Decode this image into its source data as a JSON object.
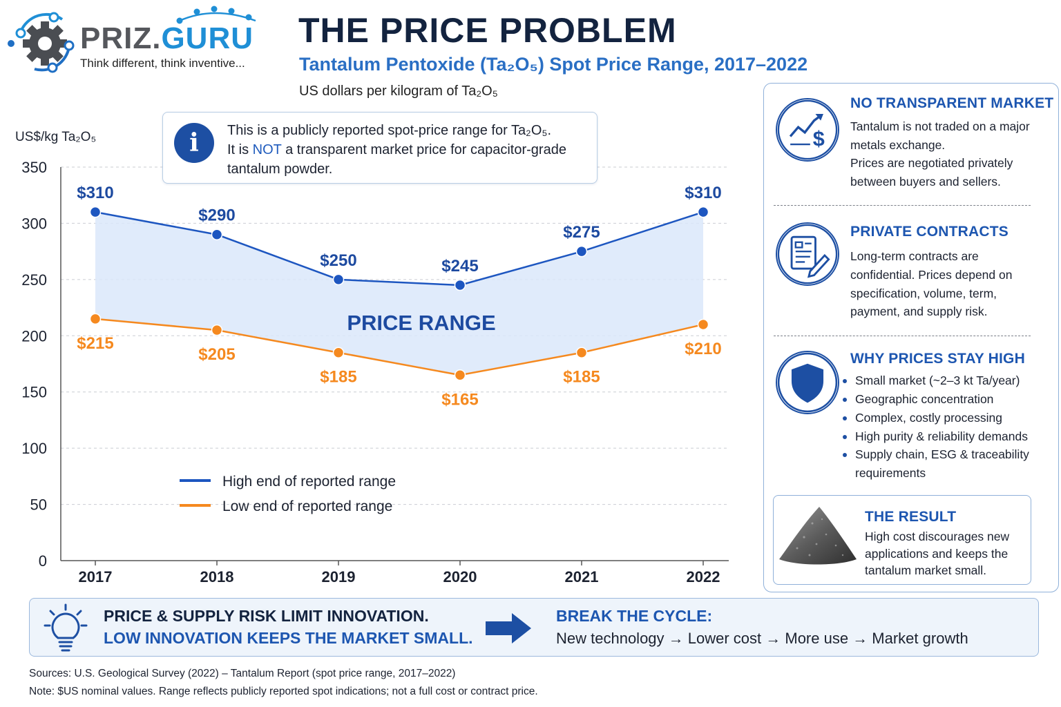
{
  "logo": {
    "name_part1": "PRIZ.",
    "name_part2": "GURU",
    "tagline": "Think different, think inventive..."
  },
  "header": {
    "title": "THE PRICE PROBLEM",
    "subtitle": "Tantalum Pentoxide (Ta₂O₅) Spot Price Range, 2017–2022",
    "unit_line": "US dollars per kilogram of Ta₂O₅"
  },
  "info_box": {
    "line1": "This is a publicly reported spot-price range for Ta₂O₅.",
    "line2_pre": "It is ",
    "line2_emph": "NOT",
    "line2_post": " a transparent market price for capacitor-grade",
    "line3": "tantalum powder."
  },
  "chart_data": {
    "type": "line",
    "ylabel": "US$/kg Ta₂O₅",
    "categories": [
      "2017",
      "2018",
      "2019",
      "2020",
      "2021",
      "2022"
    ],
    "ylim": [
      0,
      350
    ],
    "yticks": [
      "0",
      "50",
      "100",
      "150",
      "200",
      "250",
      "300",
      "350"
    ],
    "grid": true,
    "band_label": "PRICE RANGE",
    "series": [
      {
        "name": "High end of reported range",
        "values": [
          310,
          290,
          250,
          245,
          275,
          310
        ],
        "labels": [
          "$310",
          "$290",
          "$250",
          "$245",
          "$275",
          "$310"
        ],
        "color": "#1d56c0"
      },
      {
        "name": "Low end of reported range",
        "values": [
          215,
          205,
          185,
          165,
          185,
          210
        ],
        "labels": [
          "$215",
          "$205",
          "$185",
          "$165",
          "$185",
          "$210"
        ],
        "color": "#f5891f"
      }
    ],
    "legend_position": "bottom-left",
    "band_color": "#dbe8fa"
  },
  "right_panel": {
    "section1": {
      "title": "NO TRANSPARENT MARKET",
      "lines": [
        "Tantalum is not traded on a major",
        "metals exchange.",
        "Prices are negotiated privately",
        "between buyers and sellers."
      ]
    },
    "section2": {
      "title": "PRIVATE CONTRACTS",
      "lines": [
        "Long-term contracts are",
        "confidential. Prices depend on",
        "specification, volume, term,",
        "payment, and supply risk."
      ]
    },
    "section3": {
      "title": "WHY PRICES STAY HIGH",
      "bullets": [
        "Small market (~2–3 kt Ta/year)",
        "Geographic concentration",
        "Complex, costly processing",
        "High purity & reliability demands",
        "Supply chain, ESG & traceability"
      ],
      "bullet5_cont": "requirements"
    },
    "result": {
      "title": "THE RESULT",
      "lines": [
        "High cost discourages new",
        "applications and keeps the",
        "tantalum market small."
      ]
    }
  },
  "banner": {
    "left_line1": "PRICE & SUPPLY RISK LIMIT INNOVATION.",
    "left_line2": "LOW INNOVATION KEEPS THE MARKET SMALL.",
    "right_title": "BREAK THE CYCLE:",
    "right_text": "New technology → Lower cost → More use → Market growth"
  },
  "footer": {
    "sources": "Sources: U.S. Geological Survey (2022) – Tantalum Report (spot price range, 2017–2022)",
    "note": "Note: $US nominal values. Range reflects publicly reported spot indications; not a full cost or contract price."
  },
  "colors": {
    "navy": "#13233f",
    "accent_blue": "#1d56b0",
    "orange": "#f5891f"
  }
}
